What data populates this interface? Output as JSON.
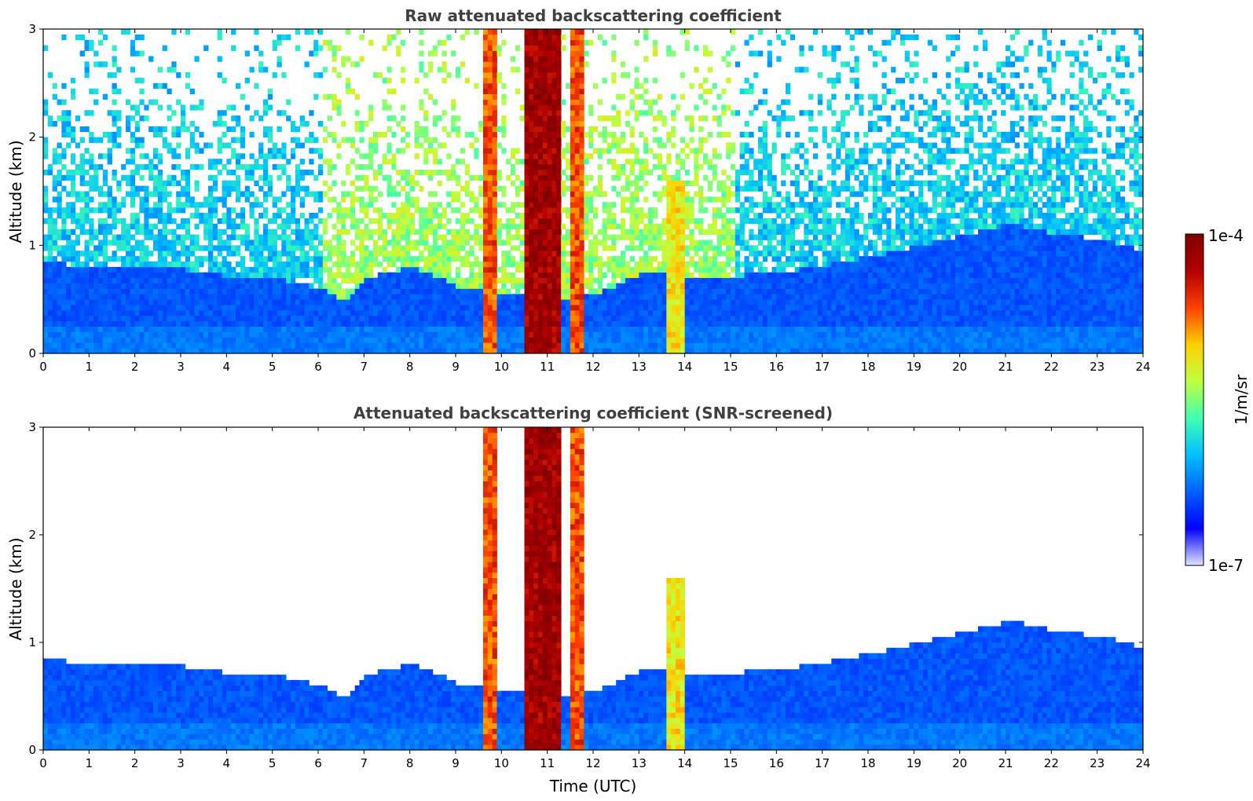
{
  "chart_data": [
    {
      "type": "heatmap",
      "title": "Raw attenuated backscattering coefficient",
      "xlabel": "",
      "ylabel": "Altitude (km)",
      "xlim": [
        0,
        24
      ],
      "ylim": [
        0,
        3
      ],
      "x_ticks": [
        "0",
        "1",
        "2",
        "3",
        "4",
        "5",
        "6",
        "7",
        "8",
        "9",
        "10",
        "11",
        "12",
        "13",
        "14",
        "15",
        "16",
        "17",
        "18",
        "19",
        "20",
        "21",
        "22",
        "23",
        "24"
      ],
      "y_ticks": [
        "0",
        "1",
        "2",
        "3"
      ],
      "screened": false,
      "cloud_columns": [
        {
          "x0": 10.4,
          "x1": 11.25,
          "y_top": 3.0,
          "value": 1.0
        },
        {
          "x0": 13.5,
          "x1": 13.9,
          "y_top": 1.6,
          "value": 0.7
        },
        {
          "x0": 9.55,
          "x1": 9.8,
          "y_top": 3.0,
          "value": 0.85
        },
        {
          "x0": 11.4,
          "x1": 11.7,
          "y_top": 3.0,
          "value": 0.85
        }
      ],
      "boundary_layer_top_km": [
        [
          0,
          0.85
        ],
        [
          1,
          0.8
        ],
        [
          2,
          0.8
        ],
        [
          3,
          0.78
        ],
        [
          4,
          0.72
        ],
        [
          5,
          0.7
        ],
        [
          6,
          0.6
        ],
        [
          6.5,
          0.48
        ],
        [
          7,
          0.7
        ],
        [
          8,
          0.8
        ],
        [
          9,
          0.62
        ],
        [
          10,
          0.55
        ],
        [
          11,
          0.5
        ],
        [
          12,
          0.55
        ],
        [
          13,
          0.75
        ],
        [
          14,
          0.7
        ],
        [
          15,
          0.72
        ],
        [
          16,
          0.75
        ],
        [
          17,
          0.82
        ],
        [
          18,
          0.9
        ],
        [
          19,
          1.0
        ],
        [
          20,
          1.1
        ],
        [
          21,
          1.2
        ],
        [
          22,
          1.1
        ],
        [
          23,
          1.05
        ],
        [
          23.8,
          0.95
        ]
      ]
    },
    {
      "type": "heatmap",
      "title": "Attenuated backscattering coefficient (SNR-screened)",
      "xlabel": "Time (UTC)",
      "ylabel": "Altitude (km)",
      "xlim": [
        0,
        24
      ],
      "ylim": [
        0,
        3
      ],
      "x_ticks": [
        "0",
        "1",
        "2",
        "3",
        "4",
        "5",
        "6",
        "7",
        "8",
        "9",
        "10",
        "11",
        "12",
        "13",
        "14",
        "15",
        "16",
        "17",
        "18",
        "19",
        "20",
        "21",
        "22",
        "23",
        "24"
      ],
      "y_ticks": [
        "0",
        "1",
        "2",
        "3"
      ],
      "screened": true
    }
  ],
  "colorbar": {
    "label": "1/m/sr",
    "max_label": "1e-4",
    "min_label": "1e-7",
    "colormap": "jet",
    "colors": [
      "#e0e4ff",
      "#0000ff",
      "#0060ff",
      "#00c0ff",
      "#40ffb0",
      "#c0ff40",
      "#ffd000",
      "#ff4000",
      "#b00000",
      "#7f0000"
    ]
  }
}
